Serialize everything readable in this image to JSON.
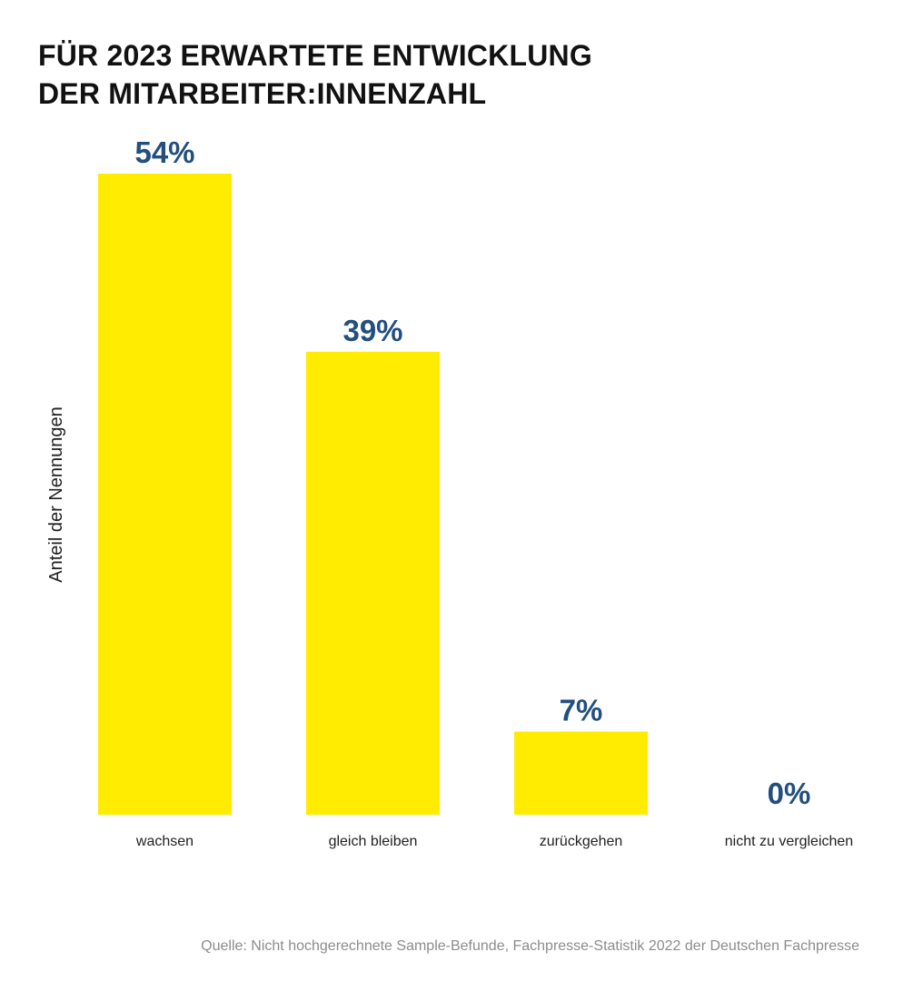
{
  "chart_data": {
    "type": "bar",
    "title_lines": [
      "FÜR 2023 ERWARTETE ENTWICKLUNG",
      "DER MITARBEITER:INNENZAHL"
    ],
    "ylabel": "Anteil der Nennungen",
    "xlabel": "",
    "categories": [
      "wachsen",
      "gleich bleiben",
      "zurückgehen",
      "nicht zu vergleichen"
    ],
    "values": [
      54,
      39,
      7,
      0
    ],
    "value_labels": [
      "54%",
      "39%",
      "7%",
      "0%"
    ],
    "ylim": [
      0,
      54
    ],
    "grid": false,
    "bar_color": "#ffec00",
    "label_color": "#234f7e"
  },
  "source": "Quelle: Nicht hochgerechnete Sample-Befunde, Fachpresse-Statistik 2022 der Deutschen Fachpresse"
}
